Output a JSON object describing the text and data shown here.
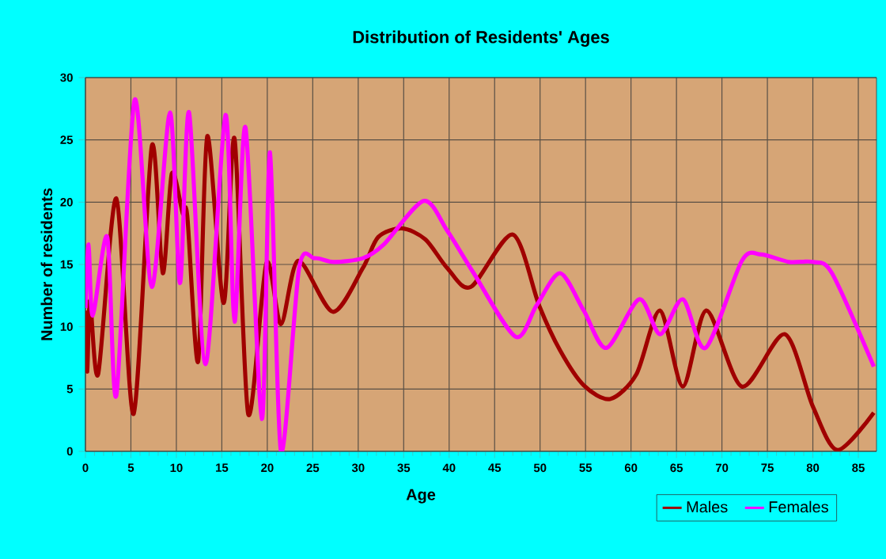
{
  "chart_data": {
    "type": "line",
    "title": "Distribution of Residents' Ages",
    "xlabel": "Age",
    "ylabel": "Number of residents",
    "xlim": [
      0,
      87
    ],
    "xticks": [
      0,
      5,
      10,
      15,
      20,
      25,
      30,
      35,
      40,
      45,
      50,
      55,
      60,
      65,
      70,
      75,
      80,
      85
    ],
    "ylim": [
      0,
      30
    ],
    "yticks": [
      0,
      5,
      10,
      15,
      20,
      25,
      30
    ],
    "grid": true,
    "legend": "bottom right",
    "line_style": "solid",
    "series": [
      {
        "name": "Males",
        "color": "#a00000",
        "x": [
          0,
          0.2,
          0.5,
          1.4,
          3.4,
          5.3,
          7.3,
          8.5,
          9.5,
          10.7,
          11.2,
          12.4,
          13.4,
          15.2,
          16.4,
          17.9,
          19.9,
          21.5,
          23.4,
          27.2,
          30.5,
          32.2,
          34.8,
          37.4,
          39.8,
          42.4,
          47,
          49.9,
          52.2,
          54.8,
          57.7,
          60.6,
          63.2,
          65.7,
          68.3,
          72.2,
          76.9,
          80,
          82.7,
          86.7
        ],
        "values": [
          11.3,
          6.4,
          12.1,
          6.2,
          20.3,
          3,
          24.5,
          14.3,
          22.3,
          19.1,
          18.9,
          7.2,
          25.3,
          11.9,
          25.1,
          3,
          15.1,
          10.2,
          15.3,
          11.2,
          14.7,
          17.2,
          17.9,
          17,
          14.7,
          13.2,
          17.4,
          11.7,
          8.1,
          5.3,
          4.2,
          6.2,
          11.3,
          5.2,
          11.3,
          5.2,
          9.4,
          3.6,
          0.1,
          3.1
        ]
      },
      {
        "name": "Females",
        "color": "#ff00ff",
        "x": [
          0,
          0.35,
          0.8,
          2.4,
          3.4,
          5.4,
          7.3,
          9.3,
          10.4,
          11.4,
          13.2,
          15.4,
          16.4,
          17.6,
          19.4,
          20.3,
          21.5,
          23.5,
          25.2,
          27.3,
          30.5,
          32.8,
          37.2,
          39.8,
          42.7,
          47.3,
          49.6,
          52.2,
          54.8,
          57.3,
          60.9,
          63.2,
          65.7,
          68.2,
          72.2,
          74.3,
          77.4,
          80,
          82.1,
          86.7
        ],
        "values": [
          11.5,
          16.6,
          10.9,
          17.2,
          4.5,
          28.2,
          13.2,
          27.2,
          13.5,
          27.2,
          7,
          27,
          10.4,
          26,
          2.6,
          24,
          0,
          14.7,
          15.5,
          15.2,
          15.5,
          16.6,
          20.1,
          17.7,
          14.3,
          9.2,
          11.7,
          14.3,
          11.3,
          8.3,
          12.2,
          9.4,
          12.2,
          8.3,
          15.3,
          15.8,
          15.2,
          15.2,
          14.3,
          6.8
        ]
      }
    ]
  }
}
